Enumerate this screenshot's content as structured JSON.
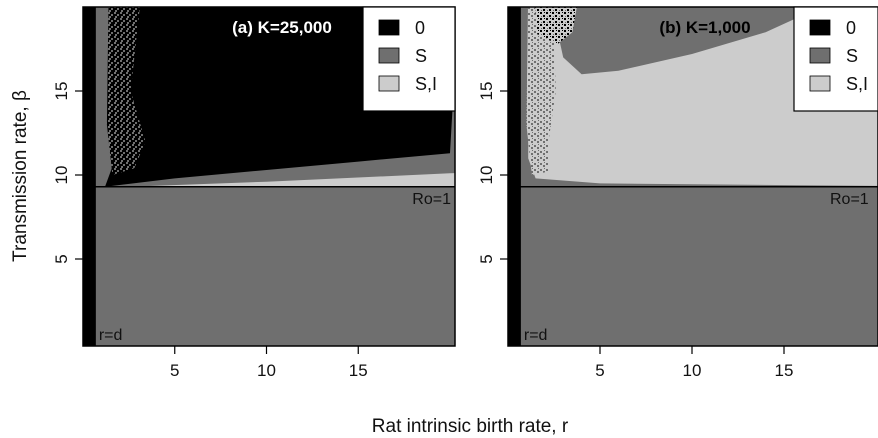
{
  "chart_data": [
    {
      "type": "heatmap",
      "title": "(a) K=25,000",
      "xlabel": "Rat intrinsic birth rate, r",
      "ylabel": "Transmission rate, β",
      "xlim": [
        0,
        20
      ],
      "ylim": [
        0,
        20
      ],
      "x_ticks": [
        "5",
        "10",
        "15"
      ],
      "y_ticks": [
        "5",
        "10",
        "15"
      ],
      "legend": {
        "placement": "top-right",
        "entries": [
          {
            "label": "0",
            "color": "#000000"
          },
          {
            "label": "S",
            "color": "#6f6f6f"
          },
          {
            "label": "S,I",
            "color": "#cccccc"
          }
        ]
      },
      "annotations": {
        "threshold_label": "Ro=1",
        "r_equals_d_label": "r=d"
      },
      "threshold_beta": 9.3,
      "r_equals_d": 0.7,
      "regions": [
        {
          "state": "S",
          "description": "r < d (black strip at left, extinction)",
          "r": [
            0,
            0.7
          ],
          "beta": [
            0,
            20
          ],
          "color_state": "0"
        },
        {
          "state": "S",
          "beta_range": [
            0,
            9.3
          ]
        },
        {
          "state": "0",
          "beta_boundary": [
            [
              1.2,
              9.3
            ],
            [
              5,
              9.8
            ],
            [
              10,
              10.3
            ],
            [
              15,
              10.8
            ],
            [
              20,
              11.3
            ]
          ]
        },
        {
          "state": "S,I",
          "beta_boundary": [
            [
              2.5,
              9.3
            ],
            [
              10,
              9.6
            ],
            [
              20,
              10.1
            ]
          ]
        }
      ]
    },
    {
      "type": "heatmap",
      "title": "(b) K=1,000",
      "xlabel": "Rat intrinsic birth rate, r",
      "ylabel": "Transmission rate, β",
      "xlim": [
        0,
        20
      ],
      "ylim": [
        0,
        20
      ],
      "x_ticks": [
        "5",
        "10",
        "15"
      ],
      "y_ticks": [
        "5",
        "10",
        "15"
      ],
      "legend": {
        "placement": "top-right",
        "entries": [
          {
            "label": "0",
            "color": "#000000"
          },
          {
            "label": "S",
            "color": "#6f6f6f"
          },
          {
            "label": "S,I",
            "color": "#cccccc"
          }
        ]
      },
      "annotations": {
        "threshold_label": "Ro=1",
        "r_equals_d_label": "r=d"
      },
      "threshold_beta": 9.3,
      "r_equals_d": 0.7,
      "regions": [
        {
          "state": "S",
          "beta_range": [
            0,
            9.3
          ]
        },
        {
          "state": "S,I",
          "beta_boundary": [
            [
              1.5,
              9.8
            ],
            [
              5,
              9.5
            ],
            [
              20,
              9.35
            ]
          ]
        },
        {
          "state": "S",
          "beta_boundary": [
            [
              4,
              16
            ],
            [
              6,
              16.2
            ],
            [
              10,
              17.2
            ],
            [
              14,
              18.5
            ],
            [
              17,
              20
            ]
          ]
        }
      ]
    }
  ]
}
